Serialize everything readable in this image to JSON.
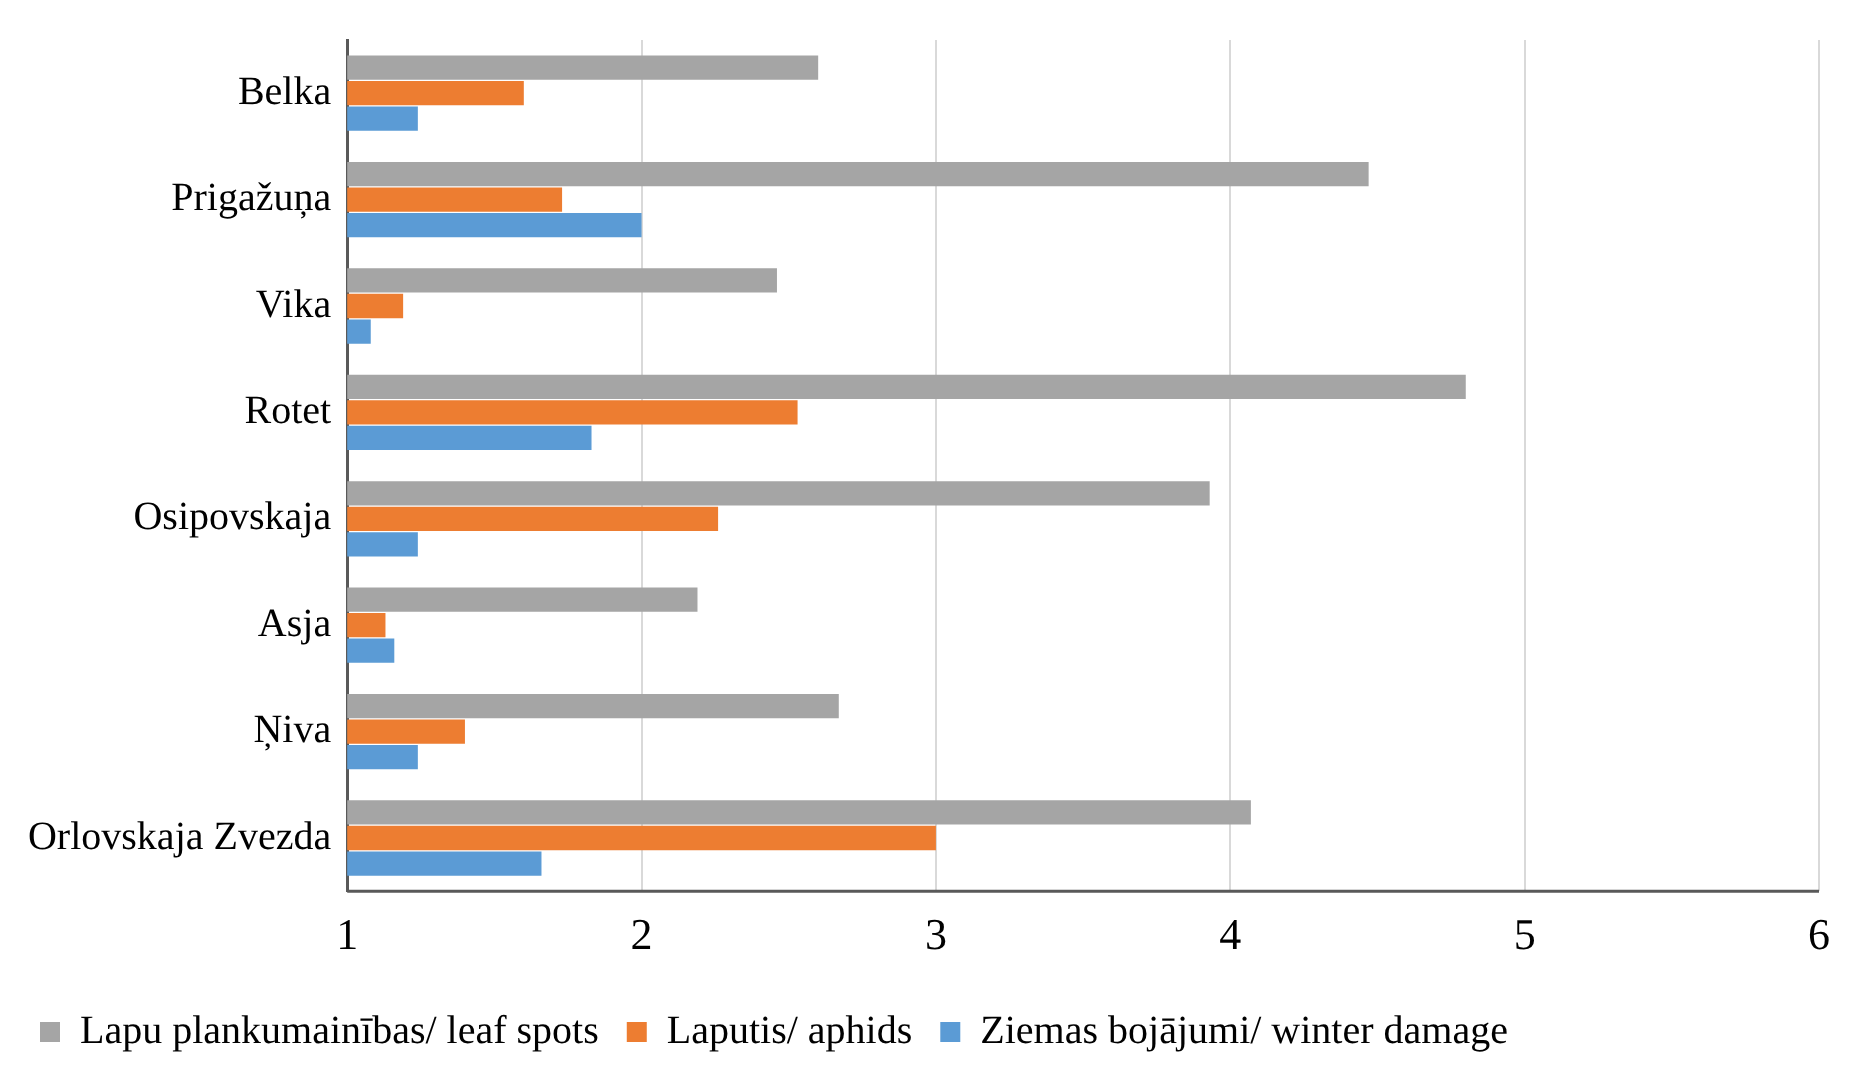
{
  "chart_data": {
    "type": "bar",
    "orientation": "horizontal",
    "categories": [
      "Belka",
      "Prigažuņa",
      "Vika",
      "Rotet",
      "Osipovskaja",
      "Asja",
      "Ņiva",
      "Orlovskaja Zvezda"
    ],
    "series": [
      {
        "name": "Lapu plankumainības/ leaf spots",
        "color": "#a5a5a5",
        "values": [
          2.6,
          4.47,
          2.46,
          4.8,
          3.93,
          2.19,
          2.67,
          4.07
        ]
      },
      {
        "name": "Laputis/ aphids",
        "color": "#ed7d31",
        "values": [
          1.6,
          1.73,
          1.19,
          2.53,
          2.26,
          1.13,
          1.4,
          3.0
        ]
      },
      {
        "name": "Ziemas bojājumi/ winter damage",
        "color": "#5b9bd5",
        "values": [
          1.24,
          2.0,
          1.08,
          1.83,
          1.24,
          1.16,
          1.24,
          1.66
        ]
      }
    ],
    "xlim": [
      1,
      6
    ],
    "xticks": [
      1,
      2,
      3,
      4,
      5,
      6
    ],
    "grid": "x",
    "legend": "bottom"
  }
}
